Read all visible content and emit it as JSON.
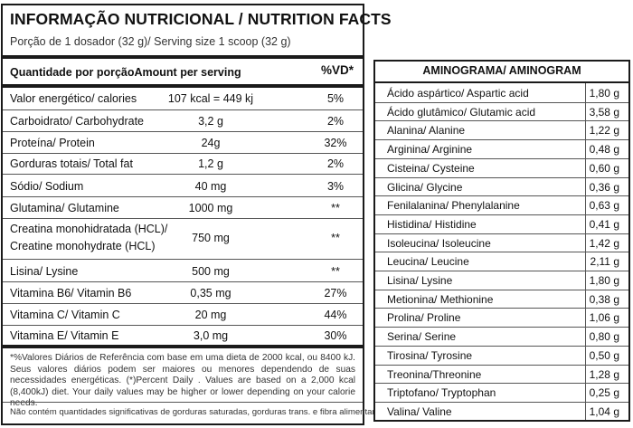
{
  "nutrition": {
    "title": "INFORMAÇÃO NUTRICIONAL / NUTRITION FACTS",
    "serving": "Porção de 1 dosador (32 g)/ Serving size 1 scoop (32 g)",
    "header_left": "Quantidade por porçãoAmount per serving",
    "header_right": "%VD*",
    "rows": [
      {
        "name": "Valor energético/ calories",
        "amount": "107 kcal = 449 kj",
        "vd": "5%"
      },
      {
        "name": "Carboidrato/ Carbohydrate",
        "amount": "3,2 g",
        "vd": "2%"
      },
      {
        "name": "Proteína/ Protein",
        "amount": "24g",
        "vd": "32%"
      },
      {
        "name": "Gorduras totais/ Total fat",
        "amount": "1,2 g",
        "vd": "2%"
      },
      {
        "name": "Sódio/ Sodium",
        "amount": "40 mg",
        "vd": "3%"
      },
      {
        "name": "Glutamina/ Glutamine",
        "amount": "1000 mg",
        "vd": "**"
      },
      {
        "name": "Creatina monohidratada (HCL)/",
        "name2": "Creatine monohydrate (HCL)",
        "amount": "750 mg",
        "vd": "**"
      },
      {
        "name": "Lisina/ Lysine",
        "amount": "500 mg",
        "vd": "**"
      },
      {
        "name": "Vitamina B6/ Vitamin B6",
        "amount": "0,35 mg",
        "vd": "27%"
      },
      {
        "name": "Vitamina C/ Vitamin C",
        "amount": "20 mg",
        "vd": "44%"
      },
      {
        "name": "Vitamina E/ Vitamin E",
        "amount": "3,0 mg",
        "vd": "30%"
      }
    ],
    "footnote": "*%Valores Diários de Referência com base em uma dieta de 2000 kcal, ou 8400 kJ. Seus valores diários podem ser maiores ou menores dependendo de suas necessidades energéticas. (*)Percent Daily . Values are based on a 2,000 kcal (8,400kJ) diet. Your daily values may be higher or lower depending on your calorie needs.",
    "footnote2": "Não contém quantidades significativas de gorduras saturadas, gorduras trans. e fibra alimentar."
  },
  "aminogram": {
    "title": "AMINOGRAMA/ AMINOGRAM",
    "rows": [
      {
        "name": "Ácido aspártico/ Aspartic acid",
        "value": "1,80 g"
      },
      {
        "name": "Ácido glutâmico/  Glutamic acid",
        "value": "3,58 g"
      },
      {
        "name": "Alanina/ Alanine",
        "value": "1,22 g"
      },
      {
        "name": "Arginina/ Arginine",
        "value": "0,48 g"
      },
      {
        "name": "Cisteina/ Cysteine",
        "value": "0,60 g"
      },
      {
        "name": "Glicina/ Glycine",
        "value": "0,36 g"
      },
      {
        "name": "Fenilalanina/ Phenylalanine",
        "value": "0,63 g"
      },
      {
        "name": "Histidina/ Histidine",
        "value": "0,41 g"
      },
      {
        "name": "Isoleucina/ Isoleucine",
        "value": "1,42 g"
      },
      {
        "name": "Leucina/ Leucine",
        "value": "2,11 g"
      },
      {
        "name": "Lisina/ Lysine",
        "value": "1,80 g"
      },
      {
        "name": "Metionina/ Methionine",
        "value": "0,38 g"
      },
      {
        "name": "Prolina/ Proline",
        "value": "1,06 g"
      },
      {
        "name": "Serina/ Serine",
        "value": "0,80 g"
      },
      {
        "name": "Tirosina/ Tyrosine",
        "value": "0,50 g"
      },
      {
        "name": "Treonina/Threonine",
        "value": "1,28 g"
      },
      {
        "name": "Triptofano/ Tryptophan",
        "value": "0,25 g"
      },
      {
        "name": "Valina/ Valine",
        "value": "1,04 g"
      }
    ]
  }
}
